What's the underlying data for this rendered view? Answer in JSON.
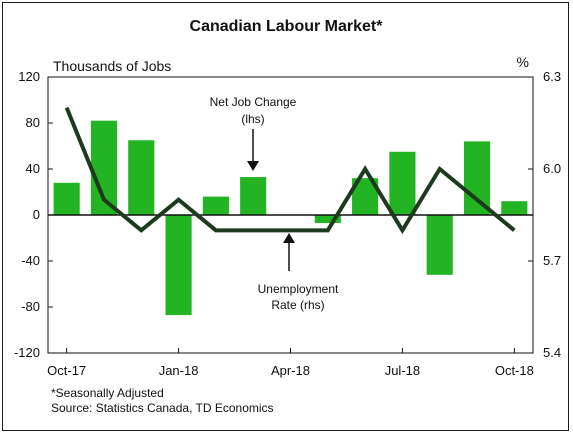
{
  "chart_data": {
    "type": "bar+line",
    "title": "Canadian Labour Market*",
    "left_axis_label": "Thousands of Jobs",
    "right_axis_label": "%",
    "left_ylim": [
      -120,
      120
    ],
    "left_ticks": [
      120,
      80,
      40,
      0,
      -40,
      -80,
      -120
    ],
    "right_ylim": [
      5.4,
      6.3
    ],
    "right_ticks": [
      "6.3",
      "6.0",
      "5.7",
      "5.4"
    ],
    "x_tick_labels": [
      "Oct-17",
      "Jan-18",
      "Apr-18",
      "Jul-18",
      "Oct-18"
    ],
    "categories": [
      "Oct-17",
      "Nov-17",
      "Dec-17",
      "Jan-18",
      "Feb-18",
      "Mar-18",
      "Apr-18",
      "May-18",
      "Jun-18",
      "Jul-18",
      "Aug-18",
      "Sep-18",
      "Oct-18"
    ],
    "series": [
      {
        "name": "Net Job Change (lhs)",
        "type": "bar",
        "axis": "left",
        "color": "#22b422",
        "values": [
          28,
          82,
          65,
          -87,
          16,
          33,
          0,
          -7,
          32,
          55,
          -52,
          64,
          12
        ]
      },
      {
        "name": "Unemployment Rate (rhs)",
        "type": "line",
        "axis": "right",
        "color": "#1e3a1e",
        "values": [
          6.2,
          5.9,
          5.8,
          5.9,
          5.8,
          5.8,
          5.8,
          5.8,
          6.0,
          5.8,
          6.0,
          5.9,
          5.8
        ]
      }
    ],
    "annotations": {
      "bar_label_line1": "Net Job Change",
      "bar_label_line2": "(lhs)",
      "line_label_line1": "Unemployment",
      "line_label_line2": "Rate (rhs)"
    },
    "notes": [
      "*Seasonally Adjusted",
      "Source: Statistics Canada, TD Economics"
    ],
    "grid": false
  }
}
